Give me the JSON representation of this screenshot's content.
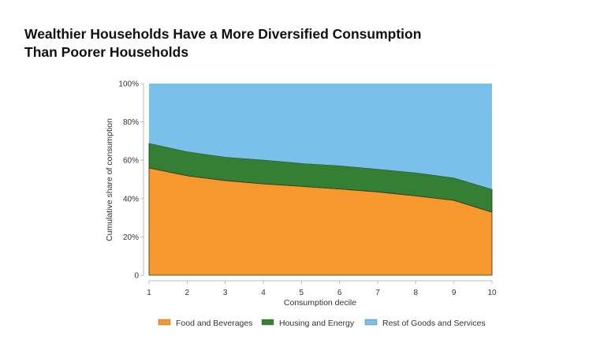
{
  "title_line1": "Wealthier Households Have a More Diversified Consumption",
  "title_line2": "Than Poorer Households",
  "chart_data": {
    "type": "area",
    "stacked": true,
    "title": "Wealthier Households Have a More Diversified Consumption Than Poorer Households",
    "xlabel": "Consumption decile",
    "ylabel": "Cumulative share of consumption",
    "x": [
      1,
      2,
      3,
      4,
      5,
      6,
      7,
      8,
      9,
      10
    ],
    "xticks": [
      "1",
      "2",
      "3",
      "4",
      "5",
      "6",
      "7",
      "8",
      "9",
      "10"
    ],
    "ylim": [
      0,
      100
    ],
    "yticks": [
      0,
      20,
      40,
      60,
      80,
      100
    ],
    "ytick_labels": [
      "0",
      "20%",
      "40%",
      "60%",
      "80%",
      "100%"
    ],
    "grid": false,
    "legend_position": "bottom",
    "series": [
      {
        "name": "Food and Beverages",
        "color": "#f7982f",
        "values": [
          56,
          51.9,
          49.4,
          47.7,
          46.4,
          45,
          43.5,
          41.4,
          39.1,
          32.9
        ]
      },
      {
        "name": "Housing and Energy",
        "color": "#357f34",
        "values": [
          12.9,
          12.6,
          12.3,
          12.5,
          12,
          12.2,
          11.9,
          12.1,
          11.7,
          12
        ]
      },
      {
        "name": "Rest of Goods and Services",
        "color": "#79c1ea",
        "values": [
          31.1,
          35.5,
          38.3,
          39.8,
          41.6,
          42.8,
          44.6,
          46.5,
          49.2,
          55.1
        ]
      }
    ]
  }
}
